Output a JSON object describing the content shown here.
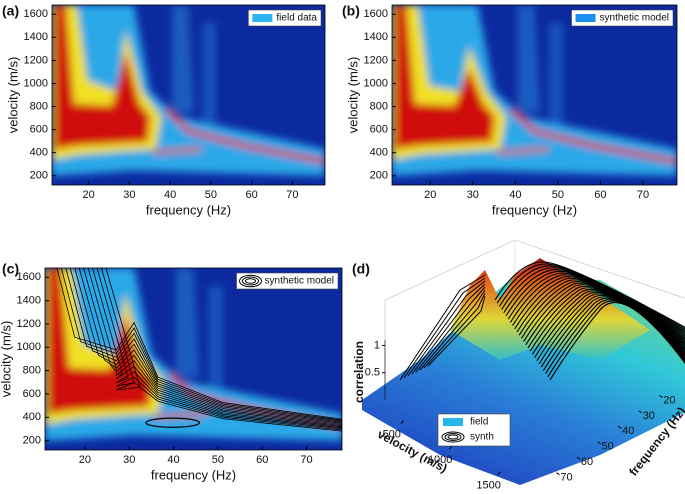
{
  "chart_data": [
    {
      "type": "heatmap",
      "panel_label": "(a)",
      "xlabel": "frequency (Hz)",
      "ylabel": "velocity (m/s)",
      "xlim": [
        11,
        78
      ],
      "ylim": [
        120,
        1680
      ],
      "xticks": [
        20,
        30,
        40,
        50,
        60,
        70
      ],
      "yticks": [
        200,
        400,
        600,
        800,
        1000,
        1200,
        1400,
        1600
      ],
      "legend": "field data",
      "legend_color": "#29b6ef",
      "contour": false
    },
    {
      "type": "heatmap",
      "panel_label": "(b)",
      "xlabel": "frequency (Hz)",
      "ylabel": "velocity (m/s)",
      "xlim": [
        11,
        78
      ],
      "ylim": [
        120,
        1680
      ],
      "xticks": [
        20,
        30,
        40,
        50,
        60,
        70
      ],
      "yticks": [
        200,
        400,
        600,
        800,
        1000,
        1200,
        1400,
        1600
      ],
      "legend": "synthetic model",
      "legend_color": "#1a8ff0",
      "contour": false
    },
    {
      "type": "heatmap",
      "panel_label": "(c)",
      "xlabel": "frequency (Hz)",
      "ylabel": "velocity (m/s)",
      "xlim": [
        11,
        78
      ],
      "ylim": [
        120,
        1680
      ],
      "xticks": [
        20,
        30,
        40,
        50,
        60,
        70
      ],
      "yticks": [
        200,
        400,
        600,
        800,
        1000,
        1200,
        1400,
        1600
      ],
      "legend": "synthetic model",
      "legend_color": "#000000",
      "contour": true
    },
    {
      "type": "surface",
      "panel_label": "(d)",
      "zlabel": "correlation",
      "zlim": [
        0,
        1.1
      ],
      "zticks": [
        0.5,
        1
      ],
      "xlabel": "velocity (m/s)",
      "xlim": [
        100,
        1700
      ],
      "xticks": [
        500,
        1000,
        1500
      ],
      "ylabel": "frequency (Hz)",
      "ylim": [
        10,
        78
      ],
      "yticks": [
        20,
        30,
        40,
        50,
        60,
        70
      ],
      "series": [
        {
          "name": "field",
          "color": "#29b6ef"
        },
        {
          "name": "synth",
          "color": "#000000"
        }
      ]
    }
  ]
}
